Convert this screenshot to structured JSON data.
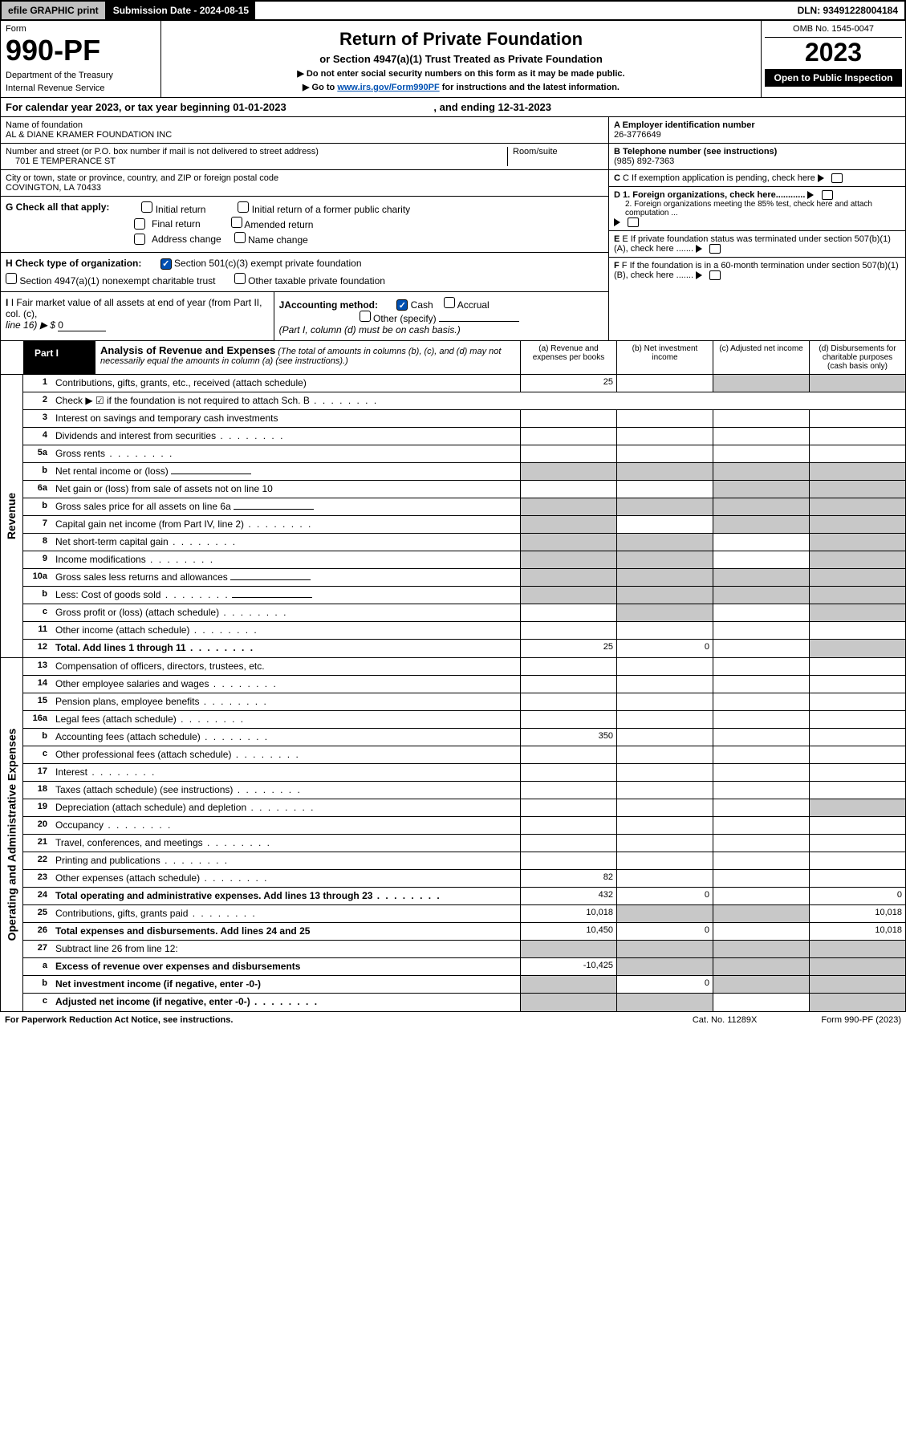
{
  "topbar": {
    "efile": "efile GRAPHIC print",
    "sub_label": "Submission Date - 2024-08-15",
    "dln": "DLN: 93491228004184"
  },
  "header": {
    "form_word": "Form",
    "form_num": "990-PF",
    "dept1": "Department of the Treasury",
    "dept2": "Internal Revenue Service",
    "title": "Return of Private Foundation",
    "sub": "or Section 4947(a)(1) Trust Treated as Private Foundation",
    "note1": "▶ Do not enter social security numbers on this form as it may be made public.",
    "note2_pre": "▶ Go to ",
    "note2_link": "www.irs.gov/Form990PF",
    "note2_post": " for instructions and the latest information.",
    "omb": "OMB No. 1545-0047",
    "year": "2023",
    "open": "Open to Public Inspection"
  },
  "cal": {
    "text_pre": "For calendar year 2023, or tax year beginning 01-01-2023",
    "text_mid": ", and ending 12-31-2023"
  },
  "info": {
    "name_lbl": "Name of foundation",
    "name": "AL & DIANE KRAMER FOUNDATION INC",
    "addr_lbl": "Number and street (or P.O. box number if mail is not delivered to street address)",
    "addr": "701 E TEMPERANCE ST",
    "room_lbl": "Room/suite",
    "city_lbl": "City or town, state or province, country, and ZIP or foreign postal code",
    "city": "COVINGTON, LA  70433",
    "a_lbl": "A Employer identification number",
    "a_val": "26-3776649",
    "b_lbl": "B Telephone number (see instructions)",
    "b_val": "(985) 892-7363",
    "c_lbl": "C If exemption application is pending, check here",
    "d1_lbl": "D 1. Foreign organizations, check here............",
    "d2_lbl": "2. Foreign organizations meeting the 85% test, check here and attach computation ...",
    "e_lbl": "E  If private foundation status was terminated under section 507(b)(1)(A), check here .......",
    "f_lbl": "F  If the foundation is in a 60-month termination under section 507(b)(1)(B), check here .......",
    "g_lbl": "G Check all that apply:",
    "g_initial": "Initial return",
    "g_initial_former": "Initial return of a former public charity",
    "g_final": "Final return",
    "g_amended": "Amended return",
    "g_addr": "Address change",
    "g_name": "Name change",
    "h_lbl": "H Check type of organization:",
    "h_501": "Section 501(c)(3) exempt private foundation",
    "h_4947": "Section 4947(a)(1) nonexempt charitable trust",
    "h_other": "Other taxable private foundation",
    "i_lbl": "I Fair market value of all assets at end of year (from Part II, col. (c),",
    "i_line": "line 16) ▶ $",
    "i_val": "0",
    "j_lbl": "JAccounting method:",
    "j_cash": "Cash",
    "j_accrual": "Accrual",
    "j_other": "Other (specify)",
    "j_note": "(Part I, column (d) must be on cash basis.)"
  },
  "part1": {
    "label": "Part I",
    "title": "Analysis of Revenue and Expenses",
    "title_note": " (The total of amounts in columns (b), (c), and (d) may not necessarily equal the amounts in column (a) (see instructions).)",
    "col_a": "(a)   Revenue and expenses per books",
    "col_b": "(b)   Net investment income",
    "col_c": "(c)   Adjusted net income",
    "col_d": "(d)  Disbursements for charitable purposes (cash basis only)"
  },
  "side": {
    "revenue": "Revenue",
    "expenses": "Operating and Administrative Expenses"
  },
  "rows": [
    {
      "num": "1",
      "desc": "Contributions, gifts, grants, etc., received (attach schedule)",
      "a": "25",
      "c_shade": true,
      "d_shade": true
    },
    {
      "num": "2",
      "desc": "Check ▶ ☑ if the foundation is not required to attach Sch. B",
      "no_cells": true,
      "dots": true
    },
    {
      "num": "3",
      "desc": "Interest on savings and temporary cash investments"
    },
    {
      "num": "4",
      "desc": "Dividends and interest from securities",
      "dots": true
    },
    {
      "num": "5a",
      "desc": "Gross rents",
      "dots": true
    },
    {
      "num": "b",
      "desc": "Net rental income or (loss)",
      "inline_box": true,
      "a_shade": true,
      "b_shade": true,
      "c_shade": true,
      "d_shade": true
    },
    {
      "num": "6a",
      "desc": "Net gain or (loss) from sale of assets not on line 10",
      "c_shade": true,
      "d_shade": true
    },
    {
      "num": "b",
      "desc": "Gross sales price for all assets on line 6a",
      "inline_box": true,
      "a_shade": true,
      "b_shade": true,
      "c_shade": true,
      "d_shade": true
    },
    {
      "num": "7",
      "desc": "Capital gain net income (from Part IV, line 2)",
      "dots": true,
      "a_shade": true,
      "c_shade": true,
      "d_shade": true
    },
    {
      "num": "8",
      "desc": "Net short-term capital gain",
      "dots": true,
      "a_shade": true,
      "b_shade": true,
      "d_shade": true
    },
    {
      "num": "9",
      "desc": "Income modifications",
      "dots": true,
      "a_shade": true,
      "b_shade": true,
      "d_shade": true
    },
    {
      "num": "10a",
      "desc": "Gross sales less returns and allowances",
      "inline_box": true,
      "a_shade": true,
      "b_shade": true,
      "c_shade": true,
      "d_shade": true
    },
    {
      "num": "b",
      "desc": "Less: Cost of goods sold",
      "dots": true,
      "inline_box": true,
      "a_shade": true,
      "b_shade": true,
      "c_shade": true,
      "d_shade": true
    },
    {
      "num": "c",
      "desc": "Gross profit or (loss) (attach schedule)",
      "dots": true,
      "b_shade": true,
      "d_shade": true
    },
    {
      "num": "11",
      "desc": "Other income (attach schedule)",
      "dots": true
    },
    {
      "num": "12",
      "desc": "Total. Add lines 1 through 11",
      "bold": true,
      "dots": true,
      "a": "25",
      "b": "0",
      "d_shade": true
    }
  ],
  "exp_rows": [
    {
      "num": "13",
      "desc": "Compensation of officers, directors, trustees, etc."
    },
    {
      "num": "14",
      "desc": "Other employee salaries and wages",
      "dots": true
    },
    {
      "num": "15",
      "desc": "Pension plans, employee benefits",
      "dots": true
    },
    {
      "num": "16a",
      "desc": "Legal fees (attach schedule)",
      "dots": true
    },
    {
      "num": "b",
      "desc": "Accounting fees (attach schedule)",
      "dots": true,
      "a": "350"
    },
    {
      "num": "c",
      "desc": "Other professional fees (attach schedule)",
      "dots": true
    },
    {
      "num": "17",
      "desc": "Interest",
      "dots": true
    },
    {
      "num": "18",
      "desc": "Taxes (attach schedule) (see instructions)",
      "dots": true
    },
    {
      "num": "19",
      "desc": "Depreciation (attach schedule) and depletion",
      "dots": true,
      "d_shade": true
    },
    {
      "num": "20",
      "desc": "Occupancy",
      "dots": true
    },
    {
      "num": "21",
      "desc": "Travel, conferences, and meetings",
      "dots": true
    },
    {
      "num": "22",
      "desc": "Printing and publications",
      "dots": true
    },
    {
      "num": "23",
      "desc": "Other expenses (attach schedule)",
      "dots": true,
      "a": "82"
    },
    {
      "num": "24",
      "desc": "Total operating and administrative expenses. Add lines 13 through 23",
      "bold": true,
      "dots": true,
      "a": "432",
      "b": "0",
      "d": "0"
    },
    {
      "num": "25",
      "desc": "Contributions, gifts, grants paid",
      "dots": true,
      "a": "10,018",
      "b_shade": true,
      "c_shade": true,
      "d": "10,018"
    },
    {
      "num": "26",
      "desc": "Total expenses and disbursements. Add lines 24 and 25",
      "bold": true,
      "a": "10,450",
      "b": "0",
      "d": "10,018"
    },
    {
      "num": "27",
      "desc": "Subtract line 26 from line 12:",
      "no_cells_shade": true
    },
    {
      "num": "a",
      "desc": "Excess of revenue over expenses and disbursements",
      "bold": true,
      "a": "-10,425",
      "b_shade": true,
      "c_shade": true,
      "d_shade": true
    },
    {
      "num": "b",
      "desc": "Net investment income (if negative, enter -0-)",
      "bold": true,
      "a_shade": true,
      "b": "0",
      "c_shade": true,
      "d_shade": true
    },
    {
      "num": "c",
      "desc": "Adjusted net income (if negative, enter -0-)",
      "bold": true,
      "dots": true,
      "a_shade": true,
      "b_shade": true,
      "d_shade": true
    }
  ],
  "footer": {
    "left": "For Paperwork Reduction Act Notice, see instructions.",
    "mid": "Cat. No. 11289X",
    "right": "Form 990-PF (2023)"
  }
}
